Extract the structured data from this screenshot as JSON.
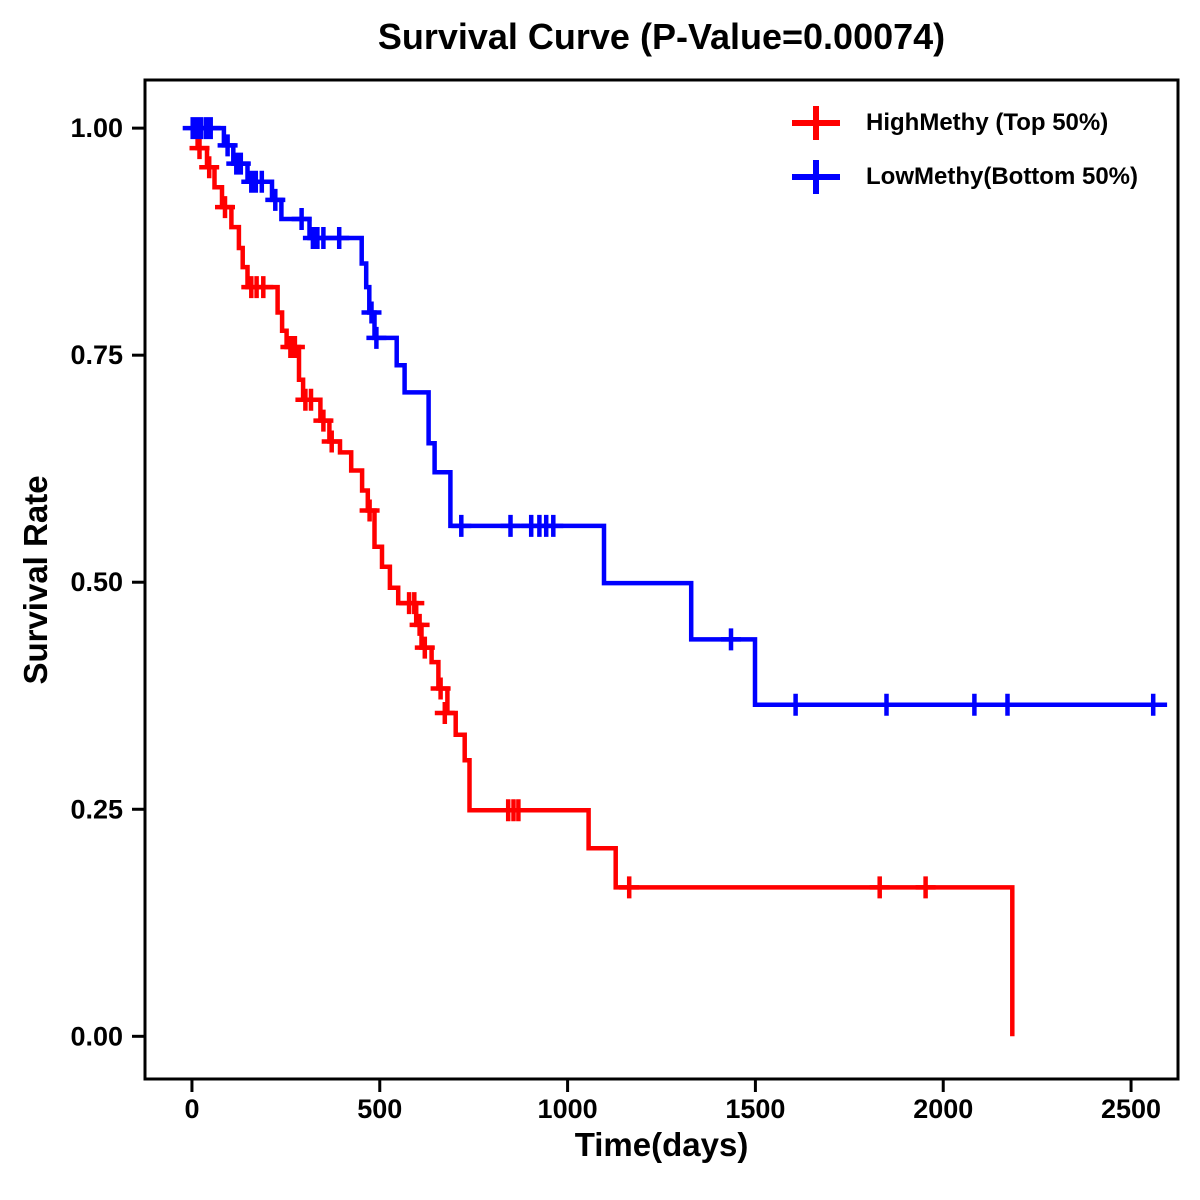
{
  "figure": {
    "background_color": "#FFFFFF",
    "axis_color": "#000000",
    "text_color": "#000000"
  },
  "chart_data": {
    "type": "line",
    "subtype": "kaplan_meier_step",
    "title": "Survival Curve (P-Value=0.00074)",
    "p_value": "0.00074",
    "xlabel": "Time(days)",
    "ylabel": "Survival Rate",
    "xlim": [
      -125,
      2625
    ],
    "ylim": [
      -0.047,
      1.053
    ],
    "xticks": {
      "values": [
        0,
        500,
        1000,
        1500,
        2000,
        2500
      ],
      "labels": [
        "0",
        "500",
        "1000",
        "1500",
        "2000",
        "2500"
      ]
    },
    "yticks": {
      "values": [
        0,
        0.25,
        0.5,
        0.75,
        1
      ],
      "labels": [
        "0.00",
        "0.25",
        "0.50",
        "0.75",
        "1.00"
      ]
    },
    "grid": false,
    "legend_position": "top-right",
    "series": [
      {
        "name": "HighMethy (Top 50%)",
        "color": "#FF0000",
        "marker": "plus-censor",
        "end_day": null,
        "steps": [
          [
            0,
            1.0
          ],
          [
            15,
            0.978
          ],
          [
            40,
            0.957
          ],
          [
            60,
            0.935
          ],
          [
            80,
            0.913
          ],
          [
            105,
            0.891
          ],
          [
            125,
            0.868
          ],
          [
            135,
            0.847
          ],
          [
            148,
            0.825
          ],
          [
            228,
            0.797
          ],
          [
            240,
            0.777
          ],
          [
            252,
            0.759
          ],
          [
            285,
            0.723
          ],
          [
            296,
            0.701
          ],
          [
            342,
            0.678
          ],
          [
            366,
            0.655
          ],
          [
            394,
            0.643
          ],
          [
            424,
            0.623
          ],
          [
            453,
            0.601
          ],
          [
            468,
            0.579
          ],
          [
            486,
            0.539
          ],
          [
            506,
            0.517
          ],
          [
            527,
            0.494
          ],
          [
            549,
            0.477
          ],
          [
            597,
            0.453
          ],
          [
            611,
            0.428
          ],
          [
            638,
            0.412
          ],
          [
            656,
            0.383
          ],
          [
            680,
            0.356
          ],
          [
            702,
            0.332
          ],
          [
            726,
            0.304
          ],
          [
            739,
            0.249
          ],
          [
            1056,
            0.207
          ],
          [
            1128,
            0.164
          ],
          [
            2184,
            0.0
          ]
        ],
        "censors": [
          [
            20,
            0.978
          ],
          [
            46,
            0.957
          ],
          [
            88,
            0.913
          ],
          [
            158,
            0.825
          ],
          [
            172,
            0.825
          ],
          [
            190,
            0.825
          ],
          [
            262,
            0.759
          ],
          [
            274,
            0.759
          ],
          [
            302,
            0.701
          ],
          [
            317,
            0.701
          ],
          [
            350,
            0.678
          ],
          [
            372,
            0.655
          ],
          [
            473,
            0.579
          ],
          [
            578,
            0.477
          ],
          [
            592,
            0.477
          ],
          [
            606,
            0.453
          ],
          [
            620,
            0.428
          ],
          [
            662,
            0.383
          ],
          [
            673,
            0.356
          ],
          [
            842,
            0.249
          ],
          [
            856,
            0.249
          ],
          [
            869,
            0.249
          ],
          [
            1164,
            0.164
          ],
          [
            1831,
            0.164
          ],
          [
            1953,
            0.164
          ]
        ]
      },
      {
        "name": "LowMethy(Bottom 50%)",
        "color": "#0000FF",
        "marker": "plus-censor",
        "end_day": 2596,
        "steps": [
          [
            0,
            1.0
          ],
          [
            85,
            0.981
          ],
          [
            110,
            0.961
          ],
          [
            148,
            0.941
          ],
          [
            213,
            0.921
          ],
          [
            238,
            0.9
          ],
          [
            313,
            0.879
          ],
          [
            452,
            0.851
          ],
          [
            464,
            0.825
          ],
          [
            472,
            0.797
          ],
          [
            486,
            0.769
          ],
          [
            545,
            0.739
          ],
          [
            566,
            0.709
          ],
          [
            630,
            0.653
          ],
          [
            646,
            0.621
          ],
          [
            688,
            0.562
          ],
          [
            1097,
            0.499
          ],
          [
            1329,
            0.437
          ],
          [
            1499,
            0.365
          ]
        ],
        "censors": [
          [
            2,
            1.0
          ],
          [
            8,
            1.0
          ],
          [
            15,
            1.0
          ],
          [
            25,
            1.0
          ],
          [
            38,
            1.0
          ],
          [
            50,
            1.0
          ],
          [
            95,
            0.981
          ],
          [
            118,
            0.961
          ],
          [
            130,
            0.961
          ],
          [
            158,
            0.941
          ],
          [
            170,
            0.941
          ],
          [
            186,
            0.941
          ],
          [
            222,
            0.921
          ],
          [
            292,
            0.9
          ],
          [
            322,
            0.879
          ],
          [
            334,
            0.879
          ],
          [
            350,
            0.879
          ],
          [
            392,
            0.879
          ],
          [
            478,
            0.797
          ],
          [
            491,
            0.769
          ],
          [
            717,
            0.562
          ],
          [
            848,
            0.562
          ],
          [
            903,
            0.562
          ],
          [
            925,
            0.562
          ],
          [
            943,
            0.562
          ],
          [
            962,
            0.562
          ],
          [
            1435,
            0.437
          ],
          [
            1607,
            0.365
          ],
          [
            1849,
            0.365
          ],
          [
            2083,
            0.365
          ],
          [
            2171,
            0.365
          ],
          [
            2559,
            0.365
          ]
        ]
      }
    ]
  }
}
